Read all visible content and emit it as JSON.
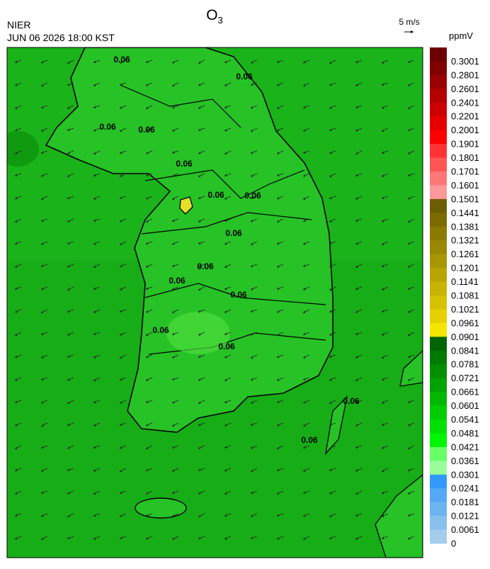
{
  "header": {
    "title_main": "O",
    "title_subscript": "3",
    "agency": "NIER",
    "datetime": "JUN 06 2026 18:00 KST",
    "wind_scale": "5 m/s",
    "unit": "ppmV"
  },
  "colorbar": {
    "labels": [
      0.3001,
      0.2801,
      0.2601,
      0.2401,
      0.2201,
      0.2001,
      0.1901,
      0.1801,
      0.1701,
      0.1601,
      0.1501,
      0.1441,
      0.1381,
      0.1321,
      0.1261,
      0.1201,
      0.1141,
      0.1081,
      0.1021,
      0.0961,
      0.0901,
      0.0841,
      0.0781,
      0.0721,
      0.0661,
      0.0601,
      0.0541,
      0.0481,
      0.0421,
      0.0361,
      0.0301,
      0.0241,
      0.0181,
      0.0121,
      0.0061,
      0
    ],
    "colors": [
      "#6b0000",
      "#800000",
      "#990000",
      "#b30000",
      "#cc0000",
      "#e60000",
      "#ff0000",
      "#ff3333",
      "#ff5555",
      "#ff7777",
      "#ff9999",
      "#6b5e00",
      "#7a6c00",
      "#8a7a00",
      "#998800",
      "#a89600",
      "#b8a500",
      "#c7b300",
      "#d6c100",
      "#e6d000",
      "#f5e600",
      "#006400",
      "#007a00",
      "#008f00",
      "#00a300",
      "#00b800",
      "#00cc00",
      "#00e000",
      "#00f500",
      "#66ff66",
      "#99ff99",
      "#3399ff",
      "#55a8f5",
      "#6db4f0",
      "#88c0ec",
      "#a3cdea"
    ]
  },
  "map": {
    "contour_labels": [
      "0.06",
      "0.06",
      "0.06",
      "0.06",
      "0.06",
      "0.06",
      "0.06",
      "0.06",
      "0.06",
      "0.06",
      "0.06",
      "0.06",
      "0.06",
      "0.06",
      "0.06"
    ]
  }
}
